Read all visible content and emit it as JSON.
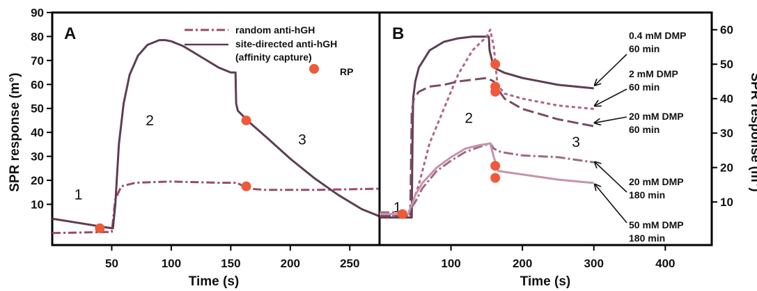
{
  "chart_data": [
    {
      "panel": "A",
      "type": "line",
      "xlabel": "Time (s)",
      "ylabel": "SPR response (m°)",
      "xlim": [
        0,
        275
      ],
      "ylim": [
        -7,
        90
      ],
      "xticks": [
        50,
        100,
        150,
        200,
        250
      ],
      "yticks": [
        10,
        20,
        30,
        40,
        50,
        60,
        70,
        80,
        90
      ],
      "phase_labels": [
        {
          "text": "1",
          "x": 22,
          "y": 12
        },
        {
          "text": "2",
          "x": 82,
          "y": 43
        },
        {
          "text": "3",
          "x": 210,
          "y": 35
        }
      ],
      "legend": [
        {
          "text": "random anti-hGH",
          "style": "dashdot"
        },
        {
          "text": "site-directed anti-hGH",
          "style": "solid"
        },
        {
          "text": "(affinity capture)",
          "style": "none"
        },
        {
          "text": "RP",
          "style": "marker"
        }
      ],
      "series": [
        {
          "name": "random anti-hGH",
          "color": "#9a4a6a",
          "dash": "12,4,3,4",
          "x": [
            0,
            50,
            51,
            53,
            58,
            70,
            100,
            140,
            155,
            165,
            180,
            220,
            275
          ],
          "y": [
            -2,
            -1.5,
            3,
            12,
            17.5,
            19,
            19.5,
            19,
            19,
            16.5,
            16,
            16,
            16.5
          ]
        },
        {
          "name": "site-directed anti-hGH",
          "color": "#5e3d52",
          "dash": "",
          "x": [
            0,
            50,
            51,
            53,
            56,
            60,
            65,
            72,
            80,
            90,
            95,
            100,
            110,
            120,
            130,
            140,
            150,
            154,
            154.5,
            156,
            160,
            165,
            180,
            200,
            220,
            240,
            260,
            275
          ],
          "y": [
            4,
            0,
            0,
            10,
            35,
            52,
            64,
            72,
            76.5,
            78.5,
            78.5,
            78,
            76,
            73,
            70,
            67,
            65,
            65,
            52,
            49,
            47,
            44.5,
            38,
            29,
            21,
            14,
            8,
            5
          ]
        }
      ],
      "markers": [
        {
          "x": 40,
          "y": 0
        },
        {
          "x": 163,
          "y": 45
        },
        {
          "x": 163,
          "y": 17.5
        }
      ],
      "legend_marker": {
        "x": 220,
        "y": 66.5
      }
    },
    {
      "panel": "B",
      "type": "line",
      "xlabel": "Time (s)",
      "ylabel": "SPR response (m°)",
      "xlim": [
        0,
        465
      ],
      "ylim": [
        -2.5,
        65
      ],
      "xticks": [
        100,
        200,
        300,
        400
      ],
      "yticks": [
        10,
        20,
        30,
        40,
        50,
        60
      ],
      "phase_labels": [
        {
          "text": "1",
          "x": 25,
          "y": 7
        },
        {
          "text": "2",
          "x": 125,
          "y": 33
        },
        {
          "text": "3",
          "x": 275,
          "y": 26
        }
      ],
      "series": [
        {
          "name": "0.4 mM DMP 60 min",
          "color": "#5e3d52",
          "dash": "",
          "x": [
            0,
            45,
            46,
            47,
            50,
            55,
            70,
            90,
            110,
            130,
            150,
            153,
            154,
            160,
            175,
            200,
            250,
            300
          ],
          "y": [
            5.5,
            5.5,
            26,
            40,
            45,
            49,
            54,
            56.5,
            57.5,
            58,
            58,
            58,
            54,
            49,
            47.5,
            46,
            44,
            43
          ]
        },
        {
          "name": "2 mM DMP 60 min",
          "color": "#b06482",
          "dash": "5,4",
          "x": [
            0,
            40,
            55,
            70,
            90,
            110,
            130,
            150,
            155,
            160,
            165,
            175,
            200,
            250,
            300
          ],
          "y": [
            6,
            6,
            15,
            27,
            37,
            47,
            54,
            58,
            60,
            55,
            44,
            41.5,
            40,
            38,
            37
          ]
        },
        {
          "name": "20 mM DMP 60 min",
          "color": "#7b4a64",
          "dash": "16,6",
          "x": [
            0,
            43,
            44,
            45,
            48,
            55,
            70,
            90,
            110,
            130,
            150,
            160,
            165,
            175,
            200,
            250,
            300
          ],
          "y": [
            6,
            6,
            20,
            36,
            40,
            42,
            43.5,
            44,
            45,
            45.5,
            46,
            45,
            43,
            40,
            37,
            34,
            32
          ]
        },
        {
          "name": "20 mM DMP 180 min",
          "color": "#9d6a84",
          "dash": "14,4,3,4",
          "x": [
            0,
            40,
            50,
            60,
            80,
            100,
            120,
            140,
            155,
            160,
            170,
            200,
            250,
            300
          ],
          "y": [
            7,
            7,
            10,
            14,
            19,
            22,
            24.5,
            26,
            27,
            25.5,
            24.5,
            23.5,
            23,
            21.5
          ]
        },
        {
          "name": "50 mM DMP 180 min",
          "color": "#c892ab",
          "dash": "",
          "x": [
            0,
            40,
            50,
            60,
            80,
            100,
            120,
            140,
            155,
            160,
            166,
            200,
            250,
            300
          ],
          "y": [
            6.5,
            6.5,
            12,
            15.5,
            20,
            23,
            25.5,
            26.5,
            27,
            23,
            19,
            18,
            16.5,
            15.5
          ]
        }
      ],
      "markers": [
        {
          "x": 32,
          "y": 6.5
        },
        {
          "x": 162,
          "y": 50
        },
        {
          "x": 162,
          "y": 43.5
        },
        {
          "x": 162,
          "y": 42
        },
        {
          "x": 162,
          "y": 20.5
        },
        {
          "x": 162,
          "y": 17
        }
      ],
      "annotations": [
        {
          "lines": [
            "0.4 mM DMP",
            "60 min"
          ],
          "arrow_to": {
            "x": 298,
            "y": 44
          }
        },
        {
          "lines": [
            "2 mM DMP",
            "60 min"
          ],
          "arrow_to": {
            "x": 298,
            "y": 38
          }
        },
        {
          "lines": [
            "20 mM DMP",
            "60 min"
          ],
          "arrow_to": {
            "x": 298,
            "y": 33
          }
        },
        {
          "lines": [
            "20 mM DMP",
            "180 min"
          ],
          "arrow_to": {
            "x": 298,
            "y": 21.5
          }
        },
        {
          "lines": [
            "50 mM DMP",
            "180 min"
          ],
          "arrow_to": {
            "x": 298,
            "y": 15
          }
        }
      ]
    }
  ],
  "marker_color": "#ee5a3a"
}
